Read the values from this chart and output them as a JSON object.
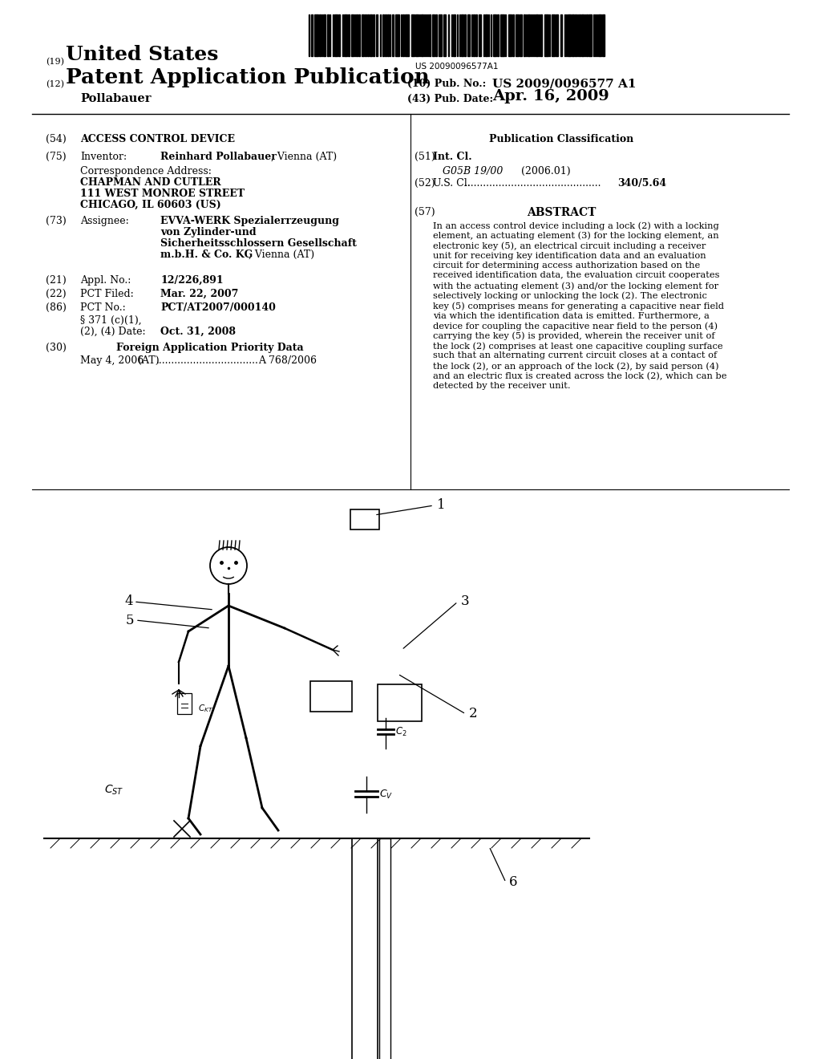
{
  "background_color": "#ffffff",
  "barcode_text": "US 20090096577A1",
  "header_line1_label": "(19)",
  "header_line1_text": "United States",
  "header_line2_label": "(12)",
  "header_line2_text": "Patent Application Publication",
  "header_pub_no_label": "(10) Pub. No.:",
  "header_pub_no_value": "US 2009/0096577 A1",
  "header_date_label": "(43) Pub. Date:",
  "header_date_value": "Apr. 16, 2009",
  "header_name": "Pollabauer",
  "field54_label": "(54)",
  "field54_title": "ACCESS CONTROL DEVICE",
  "pub_class_title": "Publication Classification",
  "field75_label": "(75)",
  "field75_key": "Inventor:",
  "field75_value_bold": "Reinhard Pollabauer",
  "field75_value_plain": ", Vienna (AT)",
  "corr_address_label": "Correspondence Address:",
  "corr_line1": "CHAPMAN AND CUTLER",
  "corr_line2": "111 WEST MONROE STREET",
  "corr_line3": "CHICAGO, IL 60603 (US)",
  "field51_label": "(51)",
  "field51_key": "Int. Cl.",
  "field51_class": "G05B 19/00",
  "field51_year": "(2006.01)",
  "field52_label": "(52)",
  "field52_key": "U.S. Cl.",
  "field52_value": "340/5.64",
  "field73_label": "(73)",
  "field73_key": "Assignee:",
  "field73_line1": "EVVA-WERK Spezialerrzeugung",
  "field73_line2": "von Zylinder-und",
  "field73_line3": "Sicherheitsschlossern Gesellschaft",
  "field73_line4_bold": "m.b.H. & Co. KG",
  "field73_line4_plain": ", Vienna (AT)",
  "field57_label": "(57)",
  "field57_title": "ABSTRACT",
  "abstract_lines": [
    "In an access control device including a lock (2) with a locking",
    "element, an actuating element (3) for the locking element, an",
    "electronic key (5), an electrical circuit including a receiver",
    "unit for receiving key identification data and an evaluation",
    "circuit for determining access authorization based on the",
    "received identification data, the evaluation circuit cooperates",
    "with the actuating element (3) and/or the locking element for",
    "selectively locking or unlocking the lock (2). The electronic",
    "key (5) comprises means for generating a capacitive near field",
    "via which the identification data is emitted. Furthermore, a",
    "device for coupling the capacitive near field to the person (4)",
    "carrying the key (5) is provided, wherein the receiver unit of",
    "the lock (2) comprises at least one capacitive coupling surface",
    "such that an alternating current circuit closes at a contact of",
    "the lock (2), or an approach of the lock (2), by said person (4)",
    "and an electric flux is created across the lock (2), which can be",
    "detected by the receiver unit."
  ],
  "field21_label": "(21)",
  "field21_key": "Appl. No.:",
  "field21_value": "12/226,891",
  "field22_label": "(22)",
  "field22_key": "PCT Filed:",
  "field22_value": "Mar. 22, 2007",
  "field86_label": "(86)",
  "field86_key": "PCT No.:",
  "field86_value": "PCT/AT2007/000140",
  "field86_sub1": "§ 371 (c)(1),",
  "field86_sub2": "(2), (4) Date:",
  "field86_sub3": "Oct. 31, 2008",
  "field30_label": "(30)",
  "field30_title": "Foreign Application Priority Data",
  "field30_date": "May 4, 2006",
  "field30_country": "(AT)",
  "field30_dots": ".................................",
  "field30_number": "A 768/2006"
}
